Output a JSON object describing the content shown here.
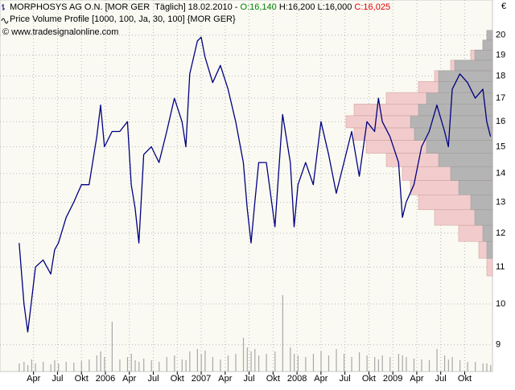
{
  "header": {
    "line1": "MORPHOSYS AG O.N. [MOR GER  Täglich] 18.02.2010 - ",
    "open": "O:16,140",
    "high_low": " H:16,200 L:16,000 ",
    "close": "C:16,025",
    "line2": "Price Volume Profile [1000, 100, Ja, 30, 100] {MOR GER}",
    "line3": "© www.tradesignalonline.com",
    "currency": "€"
  },
  "chart_data": {
    "type": "line",
    "log_scale": true,
    "grid": true,
    "xlim": [
      2004.9,
      2010.04
    ],
    "ylim": [
      8.4,
      21.9
    ],
    "yticks": [
      9,
      10,
      11,
      12,
      13,
      14,
      15,
      16,
      17,
      18,
      19,
      20
    ],
    "xticks": [
      {
        "value": 2005.25,
        "label": "Apr"
      },
      {
        "value": 2005.5,
        "label": "Jul"
      },
      {
        "value": 2005.75,
        "label": "Okt"
      },
      2006,
      {
        "value": 2006.25,
        "label": "Apr"
      },
      {
        "value": 2006.5,
        "label": "Jul"
      },
      {
        "value": 2006.75,
        "label": "Okt"
      },
      2007,
      {
        "value": 2007.25,
        "label": "Apr"
      },
      {
        "value": 2007.5,
        "label": "Jul"
      },
      {
        "value": 2007.75,
        "label": "Okt"
      },
      2008,
      {
        "value": 2008.25,
        "label": "Apr"
      },
      {
        "value": 2008.5,
        "label": "Jul"
      },
      {
        "value": 2008.75,
        "label": "Okt"
      },
      2009,
      {
        "value": 2009.25,
        "label": "Apr"
      },
      {
        "value": 2009.5,
        "label": "Jul"
      },
      {
        "value": 2009.75,
        "label": "Okt"
      }
    ],
    "x": [
      2005.1,
      2005.15,
      2005.19,
      2005.23,
      2005.27,
      2005.35,
      2005.43,
      2005.47,
      2005.51,
      2005.59,
      2005.67,
      2005.75,
      2005.83,
      2005.91,
      2005.95,
      2005.99,
      2006.07,
      2006.15,
      2006.23,
      2006.27,
      2006.31,
      2006.35,
      2006.4,
      2006.48,
      2006.56,
      2006.64,
      2006.72,
      2006.8,
      2006.84,
      2006.88,
      2006.96,
      2007.0,
      2007.04,
      2007.12,
      2007.2,
      2007.28,
      2007.36,
      2007.44,
      2007.48,
      2007.52,
      2007.56,
      2007.6,
      2007.68,
      2007.77,
      2007.85,
      2007.93,
      2007.97,
      2008.01,
      2008.09,
      2008.17,
      2008.25,
      2008.33,
      2008.41,
      2008.49,
      2008.57,
      2008.65,
      2008.73,
      2008.81,
      2008.85,
      2008.89,
      2008.97,
      2009.06,
      2009.1,
      2009.14,
      2009.22,
      2009.3,
      2009.38,
      2009.46,
      2009.54,
      2009.58,
      2009.62,
      2009.7,
      2009.78,
      2009.86,
      2009.94,
      2009.98,
      2010.02
    ],
    "series": [
      {
        "name": "MORPHOSYS AG O.N.",
        "color": "#000080",
        "values": [
          11.7,
          10.0,
          9.3,
          10.1,
          11.0,
          11.2,
          10.8,
          11.5,
          11.7,
          12.5,
          13.0,
          13.6,
          13.6,
          15.4,
          16.7,
          15.0,
          15.6,
          15.6,
          16.0,
          13.6,
          12.8,
          11.7,
          14.7,
          15.0,
          14.4,
          15.6,
          17.0,
          16.0,
          15.0,
          18.1,
          19.7,
          19.9,
          18.9,
          17.7,
          18.5,
          17.4,
          16.0,
          14.4,
          12.8,
          11.7,
          13.0,
          14.4,
          14.4,
          12.2,
          16.3,
          14.4,
          12.2,
          13.6,
          14.4,
          13.6,
          16.0,
          14.7,
          13.3,
          14.4,
          15.6,
          13.9,
          16.0,
          15.6,
          17.0,
          16.0,
          15.4,
          14.4,
          12.5,
          13.0,
          13.6,
          15.0,
          15.6,
          16.7,
          15.6,
          15.0,
          17.4,
          18.1,
          17.7,
          17.0,
          17.4,
          16.0,
          15.4
        ]
      }
    ],
    "volume": {
      "color": "#a8a8a8",
      "values": [
        10,
        12,
        8,
        15,
        10,
        12,
        9,
        14,
        10,
        12,
        11,
        13,
        15,
        20,
        25,
        18,
        62,
        15,
        18,
        22,
        14,
        12,
        16,
        14,
        12,
        18,
        20,
        15,
        14,
        25,
        28,
        22,
        26,
        18,
        15,
        20,
        22,
        42,
        30,
        25,
        28,
        20,
        22,
        25,
        95,
        30,
        22,
        20,
        18,
        22,
        25,
        20,
        28,
        22,
        18,
        24,
        20,
        18,
        15,
        20,
        18,
        22,
        20,
        18,
        16,
        15,
        14,
        28,
        20,
        15,
        18,
        14,
        12,
        12,
        10,
        10,
        8
      ]
    },
    "profile": {
      "levels": [
        11,
        11.5,
        12,
        12.5,
        13,
        13.5,
        14,
        14.5,
        15,
        15.5,
        16,
        16.5,
        17,
        17.5,
        18,
        18.5,
        19,
        19.5,
        20
      ],
      "total": [
        7,
        17,
        42,
        72,
        92,
        102,
        112,
        132,
        157,
        172,
        182,
        172,
        132,
        92,
        72,
        52,
        27,
        12,
        7
      ],
      "gray": [
        0,
        7,
        12,
        22,
        27,
        42,
        52,
        67,
        82,
        97,
        102,
        92,
        82,
        67,
        67,
        47,
        22,
        12,
        7
      ],
      "total_color": "#f2cccc",
      "gray_color": "#b4b4b4"
    }
  }
}
